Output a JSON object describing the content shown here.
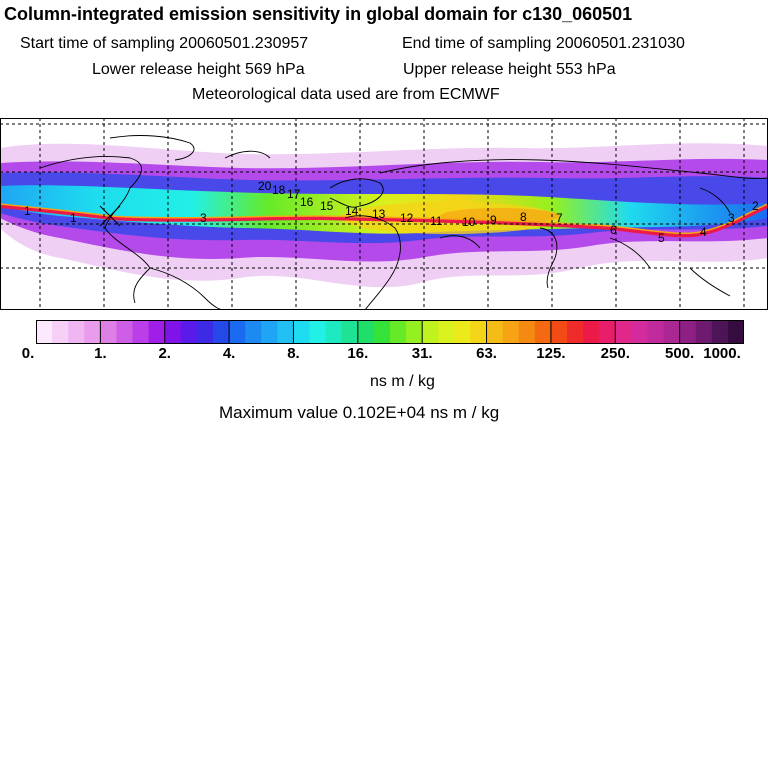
{
  "title": "Column-integrated emission sensitivity in global domain for c130_060501",
  "start_time": "Start time of sampling 20060501.230957",
  "end_time": "End time of sampling 20060501.231030",
  "lower_height": "Lower release height  569 hPa",
  "upper_height": "Upper release height  553 hPa",
  "met_data": "Meteorological data used are from ECMWF",
  "colorbar": {
    "tick_labels": [
      "0.",
      "1.",
      "2.",
      "4.",
      "8.",
      "16.",
      "31.",
      "63.",
      "125.",
      "250.",
      "500.",
      "1000."
    ],
    "colors": [
      "#fde9fd",
      "#f6d0f6",
      "#efb6f1",
      "#e89ceb",
      "#de7fe6",
      "#cf5ee6",
      "#bb3ee8",
      "#a11ee8",
      "#7f13e8",
      "#5a1bea",
      "#3c2ae6",
      "#2548e8",
      "#1a6bf0",
      "#1d8af2",
      "#1fa5f4",
      "#21c0f2",
      "#1fdbef",
      "#22f0e6",
      "#1fe9c0",
      "#1fe295",
      "#20de6a",
      "#35e23a",
      "#66ea28",
      "#94f020",
      "#bff21e",
      "#d9f11e",
      "#ecea1a",
      "#f4d418",
      "#f6bc16",
      "#f6a414",
      "#f58a12",
      "#f46a12",
      "#f24b18",
      "#ef2c2a",
      "#ec1a48",
      "#e81e6a",
      "#e0288a",
      "#d32a9e",
      "#c12a9c",
      "#aa2692",
      "#8e1f84",
      "#6e1a70",
      "#4e1458",
      "#340c40"
    ],
    "units": "ns m / kg"
  },
  "max_value": "Maximum value  0.102E+04 ns m / kg",
  "map_labels": [
    "1",
    "1",
    "3",
    "20",
    "18",
    "17",
    "16",
    "15",
    "14",
    "13",
    "12",
    "11",
    "10",
    "9",
    "8",
    "7",
    "6",
    "5",
    "4",
    "3",
    "2"
  ]
}
